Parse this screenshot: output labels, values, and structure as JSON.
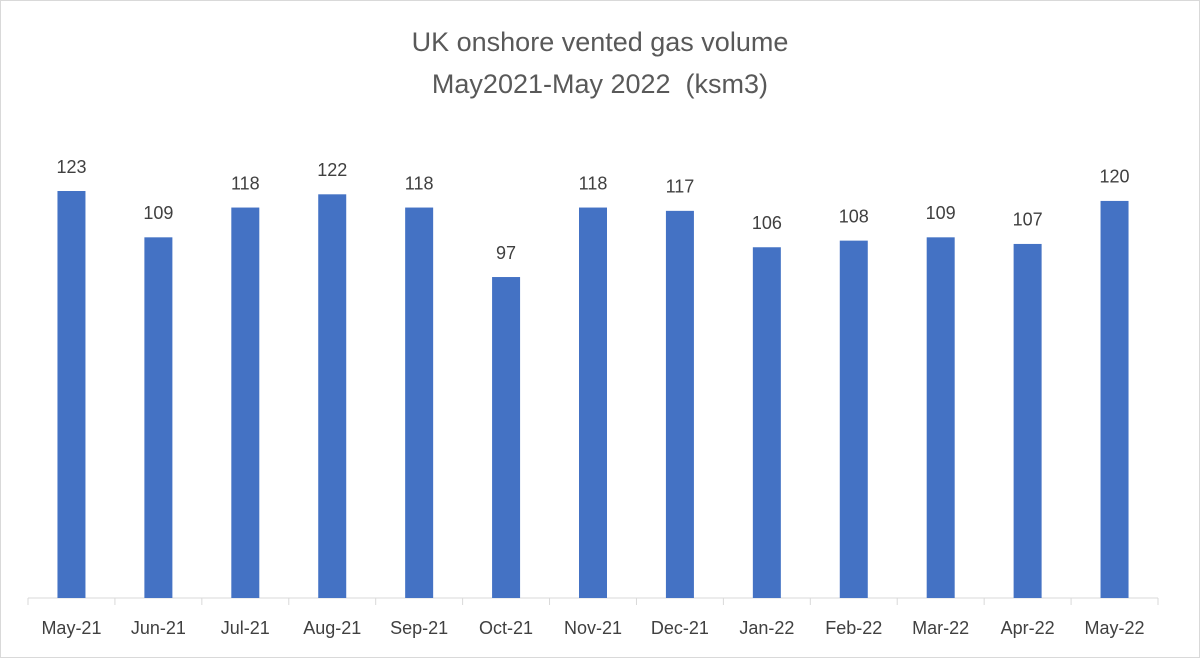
{
  "chart_data": {
    "type": "bar",
    "title": [
      "UK onshore vented gas volume",
      "May2021-May 2022  (ksm3)"
    ],
    "categories": [
      "May-21",
      "Jun-21",
      "Jul-21",
      "Aug-21",
      "Sep-21",
      "Oct-21",
      "Nov-21",
      "Dec-21",
      "Jan-22",
      "Feb-22",
      "Mar-22",
      "Apr-22",
      "May-22"
    ],
    "values": [
      123,
      109,
      118,
      122,
      118,
      97,
      118,
      117,
      106,
      108,
      109,
      107,
      120
    ],
    "color": "#4472c4"
  }
}
